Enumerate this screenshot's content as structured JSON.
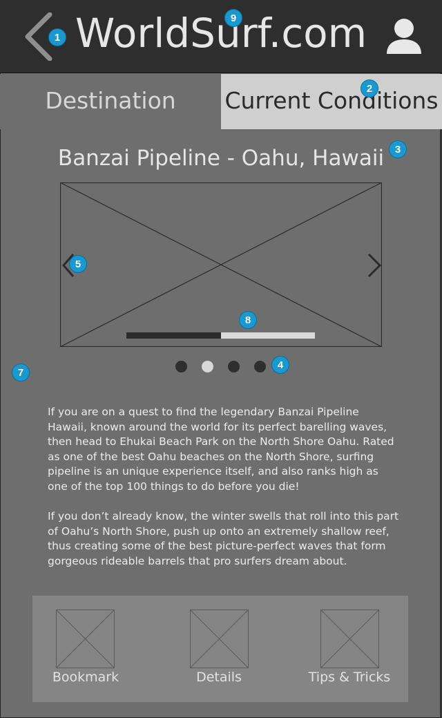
{
  "header": {
    "title": "WorldSurf.com",
    "back_icon": "chevron-left-icon",
    "profile_icon": "user-icon"
  },
  "tabs": [
    {
      "label": "Destination",
      "active": false
    },
    {
      "label": "Current Conditions",
      "active": true
    }
  ],
  "location": {
    "title": "Banzai Pipeline - Oahu, Hawaii"
  },
  "carousel": {
    "image": "image-placeholder",
    "progress": 0.5,
    "dots": 4,
    "active_dot": 1
  },
  "description": {
    "paragraph_1": "If you are on a quest to find the legendary Banzai Pipeline Hawaii, known around the world  for its perfect barelling waves, then head to Ehukai Beach Park on the North Shore Oahu.  Rated as one of the best Oahu beaches on the North Shore, surfing pipeline is an unique experience itself, and also ranks high as one of the top 100 things to do before you die!",
    "paragraph_2": "If you don’t already know, the winter swells that roll into this part of Oahu’s North Shore, push up onto an extremely shallow reef, thus creating some of the best picture-perfect waves that form gorgeous rideable barrels that pro surfers dream about."
  },
  "bottom_bar": [
    {
      "label": "Bookmark"
    },
    {
      "label": "Details"
    },
    {
      "label": "Tips & Tricks"
    }
  ],
  "markers": [
    "1",
    "2",
    "3",
    "4",
    "5",
    "7",
    "8",
    "9"
  ],
  "colors": {
    "header_bg": "#2e2e2e",
    "page_bg": "#6e6e6e",
    "active_tab_bg": "#cfcfcf",
    "marker": "#1a98d0"
  }
}
